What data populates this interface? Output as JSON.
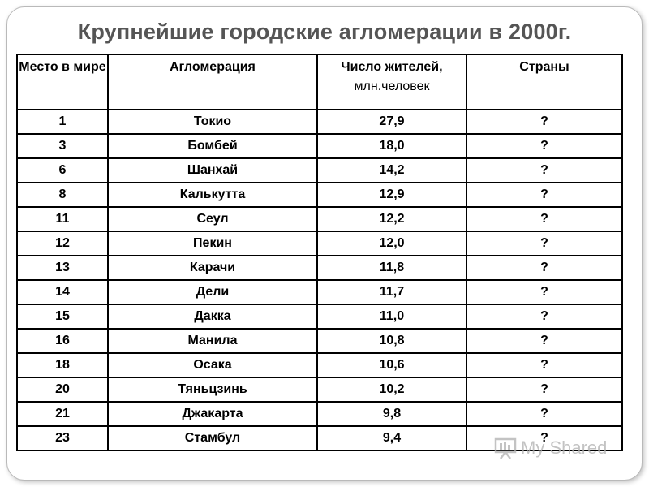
{
  "title": "Крупнейшие городские агломерации в 2000г.",
  "table": {
    "headers": {
      "rank": "Место в мире",
      "agglomeration": "Агломерация",
      "population_line1": "Число жителей,",
      "population_line2": "млн.человек",
      "countries": "Страны"
    },
    "rows": [
      {
        "rank": "1",
        "city": "Токио",
        "population": "27,9",
        "country": "?"
      },
      {
        "rank": "3",
        "city": "Бомбей",
        "population": "18,0",
        "country": "?"
      },
      {
        "rank": "6",
        "city": "Шанхай",
        "population": "14,2",
        "country": "?"
      },
      {
        "rank": "8",
        "city": "Калькутта",
        "population": "12,9",
        "country": "?"
      },
      {
        "rank": "11",
        "city": "Сеул",
        "population": "12,2",
        "country": "?"
      },
      {
        "rank": "12",
        "city": "Пекин",
        "population": "12,0",
        "country": "?"
      },
      {
        "rank": "13",
        "city": "Карачи",
        "population": "11,8",
        "country": "?"
      },
      {
        "rank": "14",
        "city": "Дели",
        "population": "11,7",
        "country": "?"
      },
      {
        "rank": "15",
        "city": "Дакка",
        "population": "11,0",
        "country": "?"
      },
      {
        "rank": "16",
        "city": "Манила",
        "population": "10,8",
        "country": "?"
      },
      {
        "rank": "18",
        "city": "Осака",
        "population": "10,6",
        "country": "?"
      },
      {
        "rank": "20",
        "city": "Тяньцзинь",
        "population": "10,2",
        "country": "?"
      },
      {
        "rank": "21",
        "city": "Джакарта",
        "population": "9,8",
        "country": "?"
      },
      {
        "rank": "23",
        "city": "Стамбул",
        "population": "9,4",
        "country": "?"
      }
    ]
  },
  "watermark": {
    "text": "My Shared",
    "icon": "presentation-board-icon"
  }
}
